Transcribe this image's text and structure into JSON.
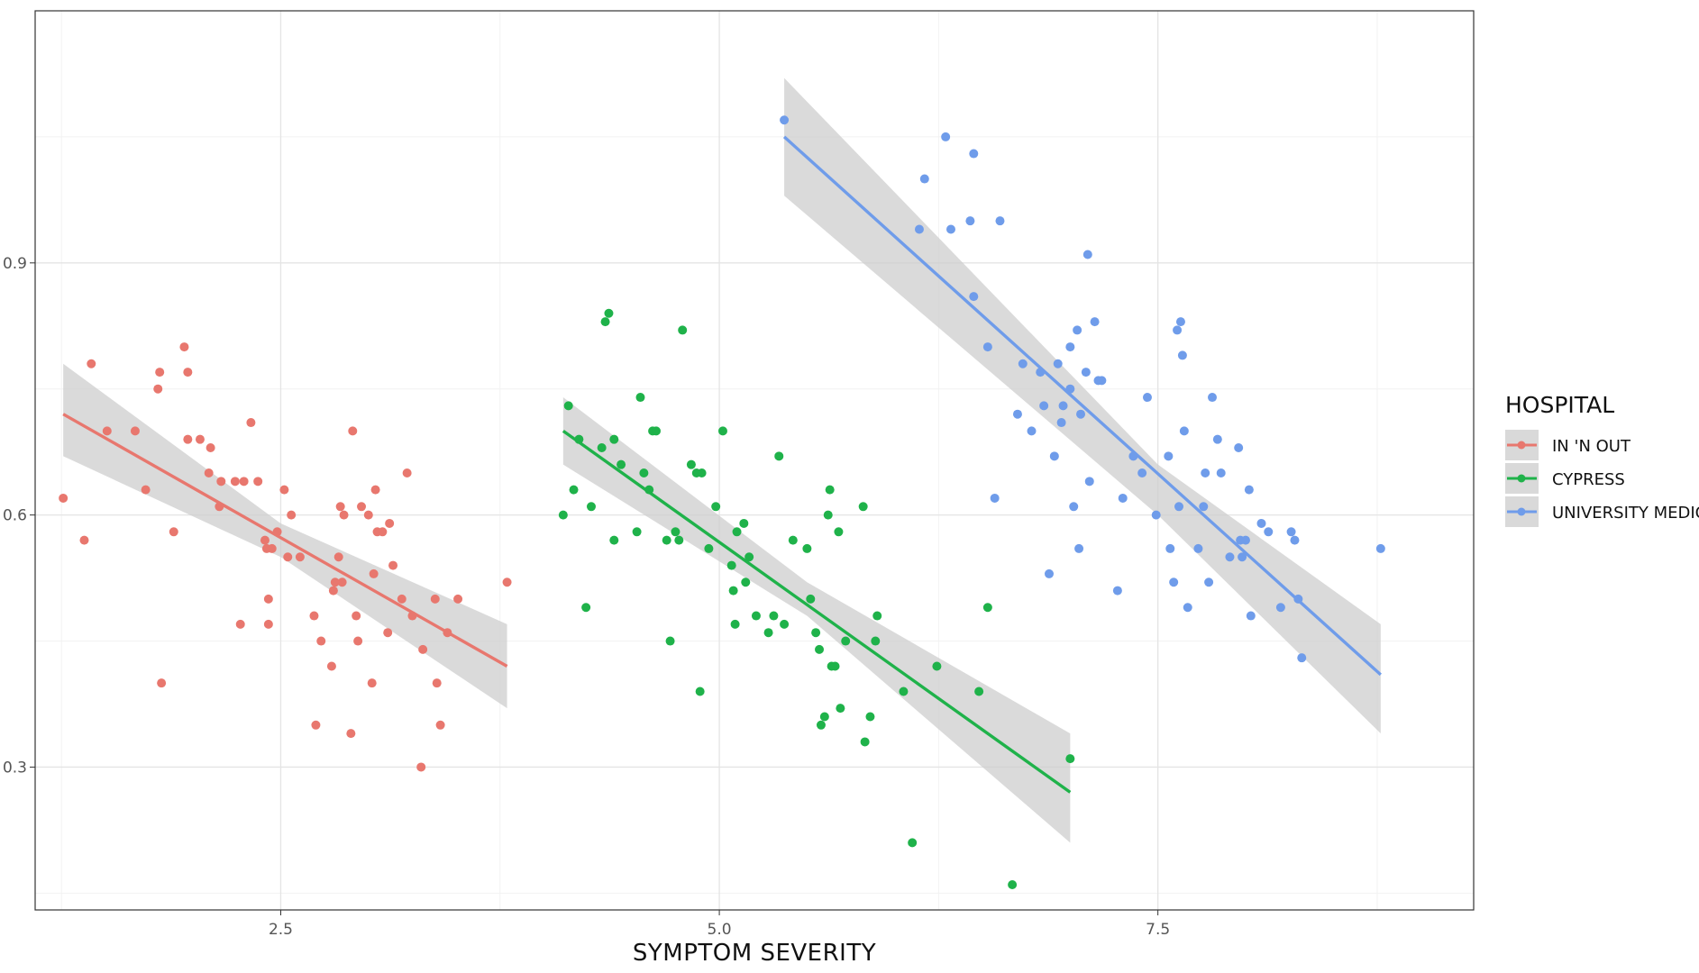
{
  "chart_data": {
    "type": "scatter",
    "title": "",
    "xlabel": "SYMPTOM SEVERITY",
    "ylabel": "",
    "xlim": [
      1.1,
      9.3
    ],
    "ylim": [
      0.13,
      1.2
    ],
    "x_ticks": [
      2.5,
      5.0,
      7.5
    ],
    "x_tick_labels": [
      "2.5",
      "5.0",
      "7.5"
    ],
    "y_ticks": [
      0.3,
      0.6,
      0.9
    ],
    "y_tick_labels": [
      "0.3",
      "0.6",
      "0.9"
    ],
    "grid": true,
    "legend": {
      "title": "HOSPITAL",
      "position": "right"
    },
    "series": [
      {
        "name": "IN 'N OUT",
        "color": "#E8776E",
        "fit": {
          "x": [
            1.26,
            3.79
          ],
          "y": [
            0.72,
            0.42
          ]
        },
        "band_upper": {
          "x": [
            1.26,
            2.5,
            3.79
          ],
          "y": [
            0.78,
            0.59,
            0.47
          ]
        },
        "band_lower": {
          "x": [
            1.26,
            2.5,
            3.79
          ],
          "y": [
            0.67,
            0.55,
            0.37
          ]
        },
        "points": [
          [
            1.26,
            0.62
          ],
          [
            1.38,
            0.57
          ],
          [
            1.42,
            0.78
          ],
          [
            1.51,
            0.7
          ],
          [
            1.67,
            0.7
          ],
          [
            1.73,
            0.63
          ],
          [
            1.8,
            0.75
          ],
          [
            1.81,
            0.77
          ],
          [
            1.82,
            0.4
          ],
          [
            1.89,
            0.58
          ],
          [
            1.95,
            0.8
          ],
          [
            1.97,
            0.77
          ],
          [
            1.97,
            0.69
          ],
          [
            2.04,
            0.69
          ],
          [
            2.09,
            0.65
          ],
          [
            2.1,
            0.68
          ],
          [
            2.15,
            0.61
          ],
          [
            2.16,
            0.64
          ],
          [
            2.24,
            0.64
          ],
          [
            2.27,
            0.47
          ],
          [
            2.29,
            0.64
          ],
          [
            2.33,
            0.71
          ],
          [
            2.37,
            0.64
          ],
          [
            2.41,
            0.57
          ],
          [
            2.42,
            0.56
          ],
          [
            2.43,
            0.5
          ],
          [
            2.43,
            0.47
          ],
          [
            2.45,
            0.56
          ],
          [
            2.48,
            0.58
          ],
          [
            2.52,
            0.63
          ],
          [
            2.54,
            0.55
          ],
          [
            2.56,
            0.6
          ],
          [
            2.61,
            0.55
          ],
          [
            2.69,
            0.48
          ],
          [
            2.7,
            0.35
          ],
          [
            2.73,
            0.45
          ],
          [
            2.79,
            0.42
          ],
          [
            2.8,
            0.51
          ],
          [
            2.81,
            0.52
          ],
          [
            2.83,
            0.55
          ],
          [
            2.84,
            0.61
          ],
          [
            2.85,
            0.52
          ],
          [
            2.86,
            0.6
          ],
          [
            2.9,
            0.34
          ],
          [
            2.91,
            0.7
          ],
          [
            2.93,
            0.48
          ],
          [
            2.94,
            0.45
          ],
          [
            2.96,
            0.61
          ],
          [
            3.0,
            0.6
          ],
          [
            3.02,
            0.4
          ],
          [
            3.03,
            0.53
          ],
          [
            3.04,
            0.63
          ],
          [
            3.05,
            0.58
          ],
          [
            3.08,
            0.58
          ],
          [
            3.11,
            0.46
          ],
          [
            3.12,
            0.59
          ],
          [
            3.14,
            0.54
          ],
          [
            3.19,
            0.5
          ],
          [
            3.22,
            0.65
          ],
          [
            3.25,
            0.48
          ],
          [
            3.3,
            0.3
          ],
          [
            3.31,
            0.44
          ],
          [
            3.38,
            0.5
          ],
          [
            3.39,
            0.4
          ],
          [
            3.41,
            0.35
          ],
          [
            3.45,
            0.46
          ],
          [
            3.51,
            0.5
          ],
          [
            3.79,
            0.52
          ]
        ]
      },
      {
        "name": "CYPRESS",
        "color": "#1FB24A",
        "fit": {
          "x": [
            4.11,
            7.0
          ],
          "y": [
            0.7,
            0.27
          ]
        },
        "band_upper": {
          "x": [
            4.11,
            5.5,
            7.0
          ],
          "y": [
            0.74,
            0.52,
            0.34
          ]
        },
        "band_lower": {
          "x": [
            4.11,
            5.5,
            7.0
          ],
          "y": [
            0.66,
            0.48,
            0.21
          ]
        },
        "points": [
          [
            4.11,
            0.6
          ],
          [
            4.14,
            0.73
          ],
          [
            4.17,
            0.63
          ],
          [
            4.2,
            0.69
          ],
          [
            4.24,
            0.49
          ],
          [
            4.27,
            0.61
          ],
          [
            4.33,
            0.68
          ],
          [
            4.35,
            0.83
          ],
          [
            4.37,
            0.84
          ],
          [
            4.4,
            0.69
          ],
          [
            4.4,
            0.57
          ],
          [
            4.44,
            0.66
          ],
          [
            4.53,
            0.58
          ],
          [
            4.55,
            0.74
          ],
          [
            4.57,
            0.65
          ],
          [
            4.6,
            0.63
          ],
          [
            4.62,
            0.7
          ],
          [
            4.64,
            0.7
          ],
          [
            4.7,
            0.57
          ],
          [
            4.72,
            0.45
          ],
          [
            4.75,
            0.58
          ],
          [
            4.77,
            0.57
          ],
          [
            4.79,
            0.82
          ],
          [
            4.84,
            0.66
          ],
          [
            4.87,
            0.65
          ],
          [
            4.89,
            0.39
          ],
          [
            4.9,
            0.65
          ],
          [
            4.94,
            0.56
          ],
          [
            4.98,
            0.61
          ],
          [
            5.02,
            0.7
          ],
          [
            5.07,
            0.54
          ],
          [
            5.08,
            0.51
          ],
          [
            5.09,
            0.47
          ],
          [
            5.1,
            0.58
          ],
          [
            5.14,
            0.59
          ],
          [
            5.15,
            0.52
          ],
          [
            5.17,
            0.55
          ],
          [
            5.21,
            0.48
          ],
          [
            5.28,
            0.46
          ],
          [
            5.31,
            0.48
          ],
          [
            5.34,
            0.67
          ],
          [
            5.37,
            0.47
          ],
          [
            5.42,
            0.57
          ],
          [
            5.5,
            0.56
          ],
          [
            5.52,
            0.5
          ],
          [
            5.55,
            0.46
          ],
          [
            5.57,
            0.44
          ],
          [
            5.58,
            0.35
          ],
          [
            5.6,
            0.36
          ],
          [
            5.62,
            0.6
          ],
          [
            5.63,
            0.63
          ],
          [
            5.64,
            0.42
          ],
          [
            5.66,
            0.42
          ],
          [
            5.68,
            0.58
          ],
          [
            5.69,
            0.37
          ],
          [
            5.72,
            0.45
          ],
          [
            5.82,
            0.61
          ],
          [
            5.83,
            0.33
          ],
          [
            5.86,
            0.36
          ],
          [
            5.89,
            0.45
          ],
          [
            5.9,
            0.48
          ],
          [
            6.05,
            0.39
          ],
          [
            6.1,
            0.21
          ],
          [
            6.24,
            0.42
          ],
          [
            6.48,
            0.39
          ],
          [
            6.53,
            0.49
          ],
          [
            6.67,
            0.16
          ],
          [
            7.0,
            0.31
          ]
        ]
      },
      {
        "name": "UNIVERSITY MEDICAL",
        "color": "#6F9CEA",
        "fit": {
          "x": [
            5.37,
            8.77
          ],
          "y": [
            1.05,
            0.41
          ]
        },
        "band_upper": {
          "x": [
            5.37,
            7.5,
            8.77
          ],
          "y": [
            1.12,
            0.66,
            0.47
          ]
        },
        "band_lower": {
          "x": [
            5.37,
            7.5,
            8.77
          ],
          "y": [
            0.98,
            0.6,
            0.34
          ]
        },
        "points": [
          [
            5.37,
            1.07
          ],
          [
            6.14,
            0.94
          ],
          [
            6.17,
            1.0
          ],
          [
            6.29,
            1.05
          ],
          [
            6.32,
            0.94
          ],
          [
            6.43,
            0.95
          ],
          [
            6.45,
            0.86
          ],
          [
            6.45,
            1.03
          ],
          [
            6.53,
            0.8
          ],
          [
            6.57,
            0.62
          ],
          [
            6.6,
            0.95
          ],
          [
            6.7,
            0.72
          ],
          [
            6.73,
            0.78
          ],
          [
            6.78,
            0.7
          ],
          [
            6.83,
            0.77
          ],
          [
            6.85,
            0.73
          ],
          [
            6.88,
            0.53
          ],
          [
            6.91,
            0.67
          ],
          [
            6.93,
            0.78
          ],
          [
            6.95,
            0.71
          ],
          [
            6.96,
            0.73
          ],
          [
            7.0,
            0.75
          ],
          [
            7.0,
            0.8
          ],
          [
            7.02,
            0.61
          ],
          [
            7.04,
            0.82
          ],
          [
            7.05,
            0.56
          ],
          [
            7.06,
            0.72
          ],
          [
            7.09,
            0.77
          ],
          [
            7.1,
            0.91
          ],
          [
            7.11,
            0.64
          ],
          [
            7.14,
            0.83
          ],
          [
            7.16,
            0.76
          ],
          [
            7.18,
            0.76
          ],
          [
            7.27,
            0.51
          ],
          [
            7.3,
            0.62
          ],
          [
            7.36,
            0.67
          ],
          [
            7.41,
            0.65
          ],
          [
            7.44,
            0.74
          ],
          [
            7.49,
            0.6
          ],
          [
            7.56,
            0.67
          ],
          [
            7.57,
            0.56
          ],
          [
            7.59,
            0.52
          ],
          [
            7.61,
            0.82
          ],
          [
            7.62,
            0.61
          ],
          [
            7.63,
            0.83
          ],
          [
            7.64,
            0.79
          ],
          [
            7.65,
            0.7
          ],
          [
            7.67,
            0.49
          ],
          [
            7.73,
            0.56
          ],
          [
            7.76,
            0.61
          ],
          [
            7.77,
            0.65
          ],
          [
            7.79,
            0.52
          ],
          [
            7.81,
            0.74
          ],
          [
            7.84,
            0.69
          ],
          [
            7.86,
            0.65
          ],
          [
            7.91,
            0.55
          ],
          [
            7.96,
            0.68
          ],
          [
            7.97,
            0.57
          ],
          [
            7.98,
            0.55
          ],
          [
            8.0,
            0.57
          ],
          [
            8.02,
            0.63
          ],
          [
            8.03,
            0.48
          ],
          [
            8.09,
            0.59
          ],
          [
            8.13,
            0.58
          ],
          [
            8.2,
            0.49
          ],
          [
            8.26,
            0.58
          ],
          [
            8.28,
            0.57
          ],
          [
            8.3,
            0.5
          ],
          [
            8.32,
            0.43
          ],
          [
            8.77,
            0.56
          ]
        ]
      }
    ]
  }
}
